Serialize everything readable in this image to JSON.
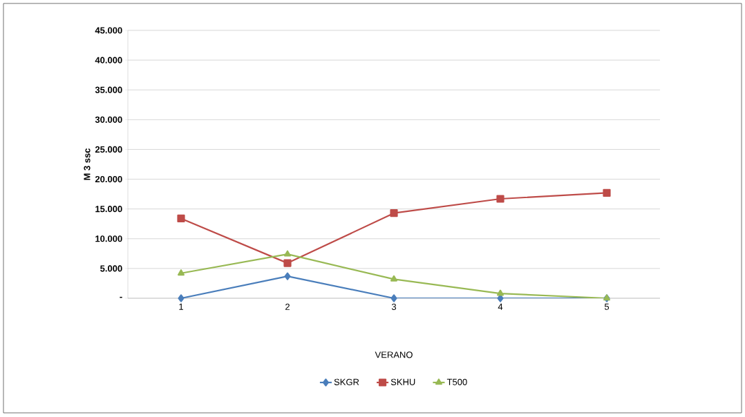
{
  "chart_data": {
    "type": "line",
    "xlabel": "VERANO",
    "ylabel": "M 3 ssc",
    "categories": [
      "1",
      "2",
      "3",
      "4",
      "5"
    ],
    "series": [
      {
        "name": "SKGR",
        "color": "#4a7ebb",
        "marker": "diamond",
        "values": [
          0,
          3700,
          0,
          0,
          0
        ]
      },
      {
        "name": "SKHU",
        "color": "#be4b48",
        "marker": "square",
        "values": [
          13400,
          5900,
          14300,
          16700,
          17700
        ]
      },
      {
        "name": "T500",
        "color": "#98b954",
        "marker": "triangle",
        "values": [
          4200,
          7400,
          3200,
          800,
          0
        ]
      }
    ],
    "ylim": [
      0,
      45000
    ],
    "yticks": [
      {
        "value": 0,
        "label": "-"
      },
      {
        "value": 5000,
        "label": "5.000"
      },
      {
        "value": 10000,
        "label": "10.000"
      },
      {
        "value": 15000,
        "label": "15.000"
      },
      {
        "value": 20000,
        "label": "20.000"
      },
      {
        "value": 25000,
        "label": "25.000"
      },
      {
        "value": 30000,
        "label": "30.000"
      },
      {
        "value": 35000,
        "label": "35.000"
      },
      {
        "value": 40000,
        "label": "40.000"
      },
      {
        "value": 45000,
        "label": "45.000"
      }
    ],
    "grid": "y",
    "legend": "bottom",
    "line_style": "solid"
  }
}
